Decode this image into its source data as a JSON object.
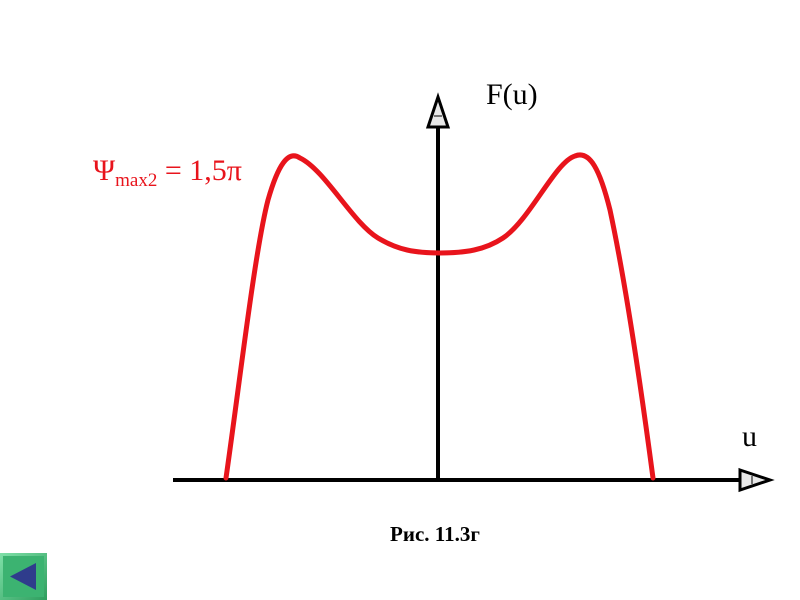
{
  "figure": {
    "y_axis_label": "F(u)",
    "x_axis_label": "u",
    "annotation": {
      "symbol": "Ψ",
      "subscript": "max2",
      "equals_text": " = 1,5π"
    },
    "caption": "Рис. 11.3г"
  },
  "colors": {
    "curve": "#e8141c",
    "axes": "#000000",
    "annotation": "#e8141c",
    "nav_button_bg": "#3cb371",
    "nav_button_arrow": "#2f3c8c"
  },
  "nav": {
    "back_icon": "left-triangle-arrow"
  }
}
